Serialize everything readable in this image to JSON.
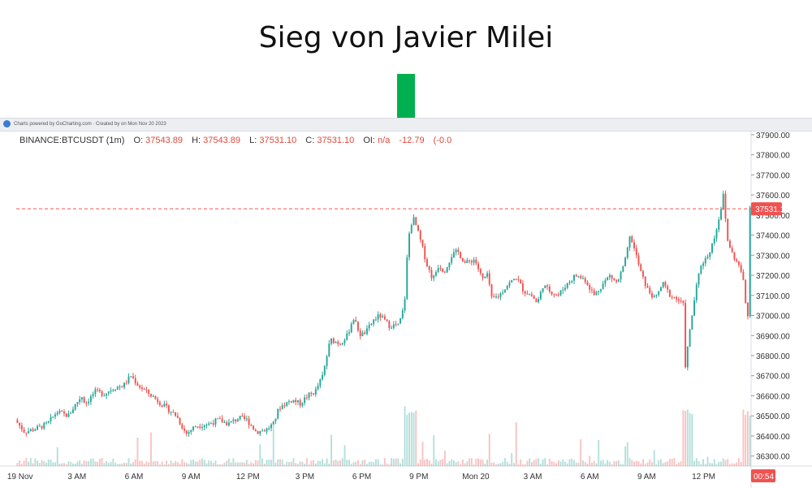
{
  "headline": "Sieg von Javier Milei",
  "credit": "Charts powered by GoCharting.com · Created by  on Mon Nov 20 2023",
  "legend": {
    "symbol": "BINANCE:BTCUSDT (1m)",
    "o_label": "O:",
    "o": "37543.89",
    "h_label": "H:",
    "h": "37543.89",
    "l_label": "L:",
    "l": "37531.10",
    "c_label": "C:",
    "c": "37531.10",
    "oi_label": "OI:",
    "oi": "n/a",
    "change": "-12.79",
    "change_pct": "(-0.0"
  },
  "colors": {
    "up": "#26a69a",
    "down": "#ef5350",
    "arrow": "#00b050",
    "price_line": "#ef5350"
  },
  "chart_data": {
    "type": "candlestick",
    "symbol": "BINANCE:BTCUSDT",
    "interval": "1m",
    "current_price": 37531.1,
    "current_price_label": "37531.10",
    "countdown_label": "00:54",
    "ylim": [
      36250,
      37920
    ],
    "y_ticks": [
      "37900.00",
      "37800.00",
      "37700.00",
      "37600.00",
      "37500.00",
      "37400.00",
      "37300.00",
      "37200.00",
      "37100.00",
      "37000.00",
      "36900.00",
      "36800.00",
      "36700.00",
      "36600.00",
      "36500.00",
      "36400.00",
      "36300.00"
    ],
    "x_ticks": [
      "19 Nov",
      "3 AM",
      "6 AM",
      "9 AM",
      "12 PM",
      "3 PM",
      "6 PM",
      "9 PM",
      "Mon 20",
      "3 AM",
      "6 AM",
      "9 AM",
      "12 PM"
    ],
    "x_tick_hours": [
      0,
      3,
      6,
      9,
      12,
      15,
      18,
      21,
      24,
      27,
      30,
      33,
      36
    ],
    "x_range_hours": [
      -0.2,
      38.5
    ],
    "price_path": [
      [
        -0.2,
        36480
      ],
      [
        0.3,
        36420
      ],
      [
        1,
        36440
      ],
      [
        1.5,
        36460
      ],
      [
        2,
        36520
      ],
      [
        2.6,
        36500
      ],
      [
        3,
        36560
      ],
      [
        3.3,
        36600
      ],
      [
        3.5,
        36560
      ],
      [
        4,
        36620
      ],
      [
        4.5,
        36610
      ],
      [
        5,
        36640
      ],
      [
        5.5,
        36650
      ],
      [
        5.9,
        36700
      ],
      [
        6.3,
        36650
      ],
      [
        7,
        36600
      ],
      [
        7.5,
        36560
      ],
      [
        8.3,
        36500
      ],
      [
        8.8,
        36410
      ],
      [
        9.3,
        36450
      ],
      [
        10,
        36460
      ],
      [
        10.5,
        36480
      ],
      [
        11,
        36460
      ],
      [
        11.6,
        36490
      ],
      [
        12,
        36480
      ],
      [
        12.5,
        36420
      ],
      [
        13,
        36430
      ],
      [
        13.4,
        36460
      ],
      [
        13.7,
        36540
      ],
      [
        14,
        36560
      ],
      [
        14.4,
        36580
      ],
      [
        14.8,
        36560
      ],
      [
        15.2,
        36600
      ],
      [
        15.6,
        36620
      ],
      [
        16,
        36700
      ],
      [
        16.4,
        36880
      ],
      [
        16.9,
        36860
      ],
      [
        17.3,
        36900
      ],
      [
        17.6,
        36990
      ],
      [
        18,
        36900
      ],
      [
        18.3,
        36920
      ],
      [
        18.7,
        36980
      ],
      [
        19,
        37000
      ],
      [
        19.5,
        36950
      ],
      [
        20,
        36950
      ],
      [
        20.3,
        37050
      ],
      [
        20.45,
        37300
      ],
      [
        20.6,
        37450
      ],
      [
        20.8,
        37480
      ],
      [
        21,
        37420
      ],
      [
        21.3,
        37320
      ],
      [
        21.5,
        37250
      ],
      [
        21.8,
        37180
      ],
      [
        22.1,
        37250
      ],
      [
        22.4,
        37220
      ],
      [
        22.8,
        37300
      ],
      [
        23.1,
        37320
      ],
      [
        23.5,
        37260
      ],
      [
        24,
        37280
      ],
      [
        24.4,
        37180
      ],
      [
        24.7,
        37200
      ],
      [
        24.9,
        37080
      ],
      [
        25.3,
        37100
      ],
      [
        25.7,
        37150
      ],
      [
        26.2,
        37190
      ],
      [
        26.6,
        37120
      ],
      [
        27,
        37100
      ],
      [
        27.3,
        37060
      ],
      [
        27.6,
        37150
      ],
      [
        28,
        37120
      ],
      [
        28.4,
        37100
      ],
      [
        28.8,
        37150
      ],
      [
        29.3,
        37200
      ],
      [
        29.8,
        37180
      ],
      [
        30.3,
        37100
      ],
      [
        30.7,
        37150
      ],
      [
        31.1,
        37200
      ],
      [
        31.5,
        37160
      ],
      [
        31.9,
        37260
      ],
      [
        32.2,
        37400
      ],
      [
        32.5,
        37300
      ],
      [
        32.8,
        37200
      ],
      [
        33.1,
        37130
      ],
      [
        33.5,
        37080
      ],
      [
        33.9,
        37160
      ],
      [
        34.3,
        37100
      ],
      [
        34.7,
        37080
      ],
      [
        35,
        37050
      ],
      [
        35.1,
        36750
      ],
      [
        35.3,
        36900
      ],
      [
        35.6,
        37100
      ],
      [
        35.9,
        37250
      ],
      [
        36.3,
        37300
      ],
      [
        36.6,
        37380
      ],
      [
        36.9,
        37500
      ],
      [
        37.1,
        37600
      ],
      [
        37.3,
        37380
      ],
      [
        37.6,
        37300
      ],
      [
        37.9,
        37250
      ],
      [
        38.1,
        37200
      ],
      [
        38.25,
        37100
      ],
      [
        38.35,
        36850
      ],
      [
        38.45,
        37300
      ],
      [
        38.5,
        37550
      ]
    ],
    "markers": [
      {
        "text": "Sieg von Javier Milei",
        "at_hour": 20.7
      }
    ]
  }
}
